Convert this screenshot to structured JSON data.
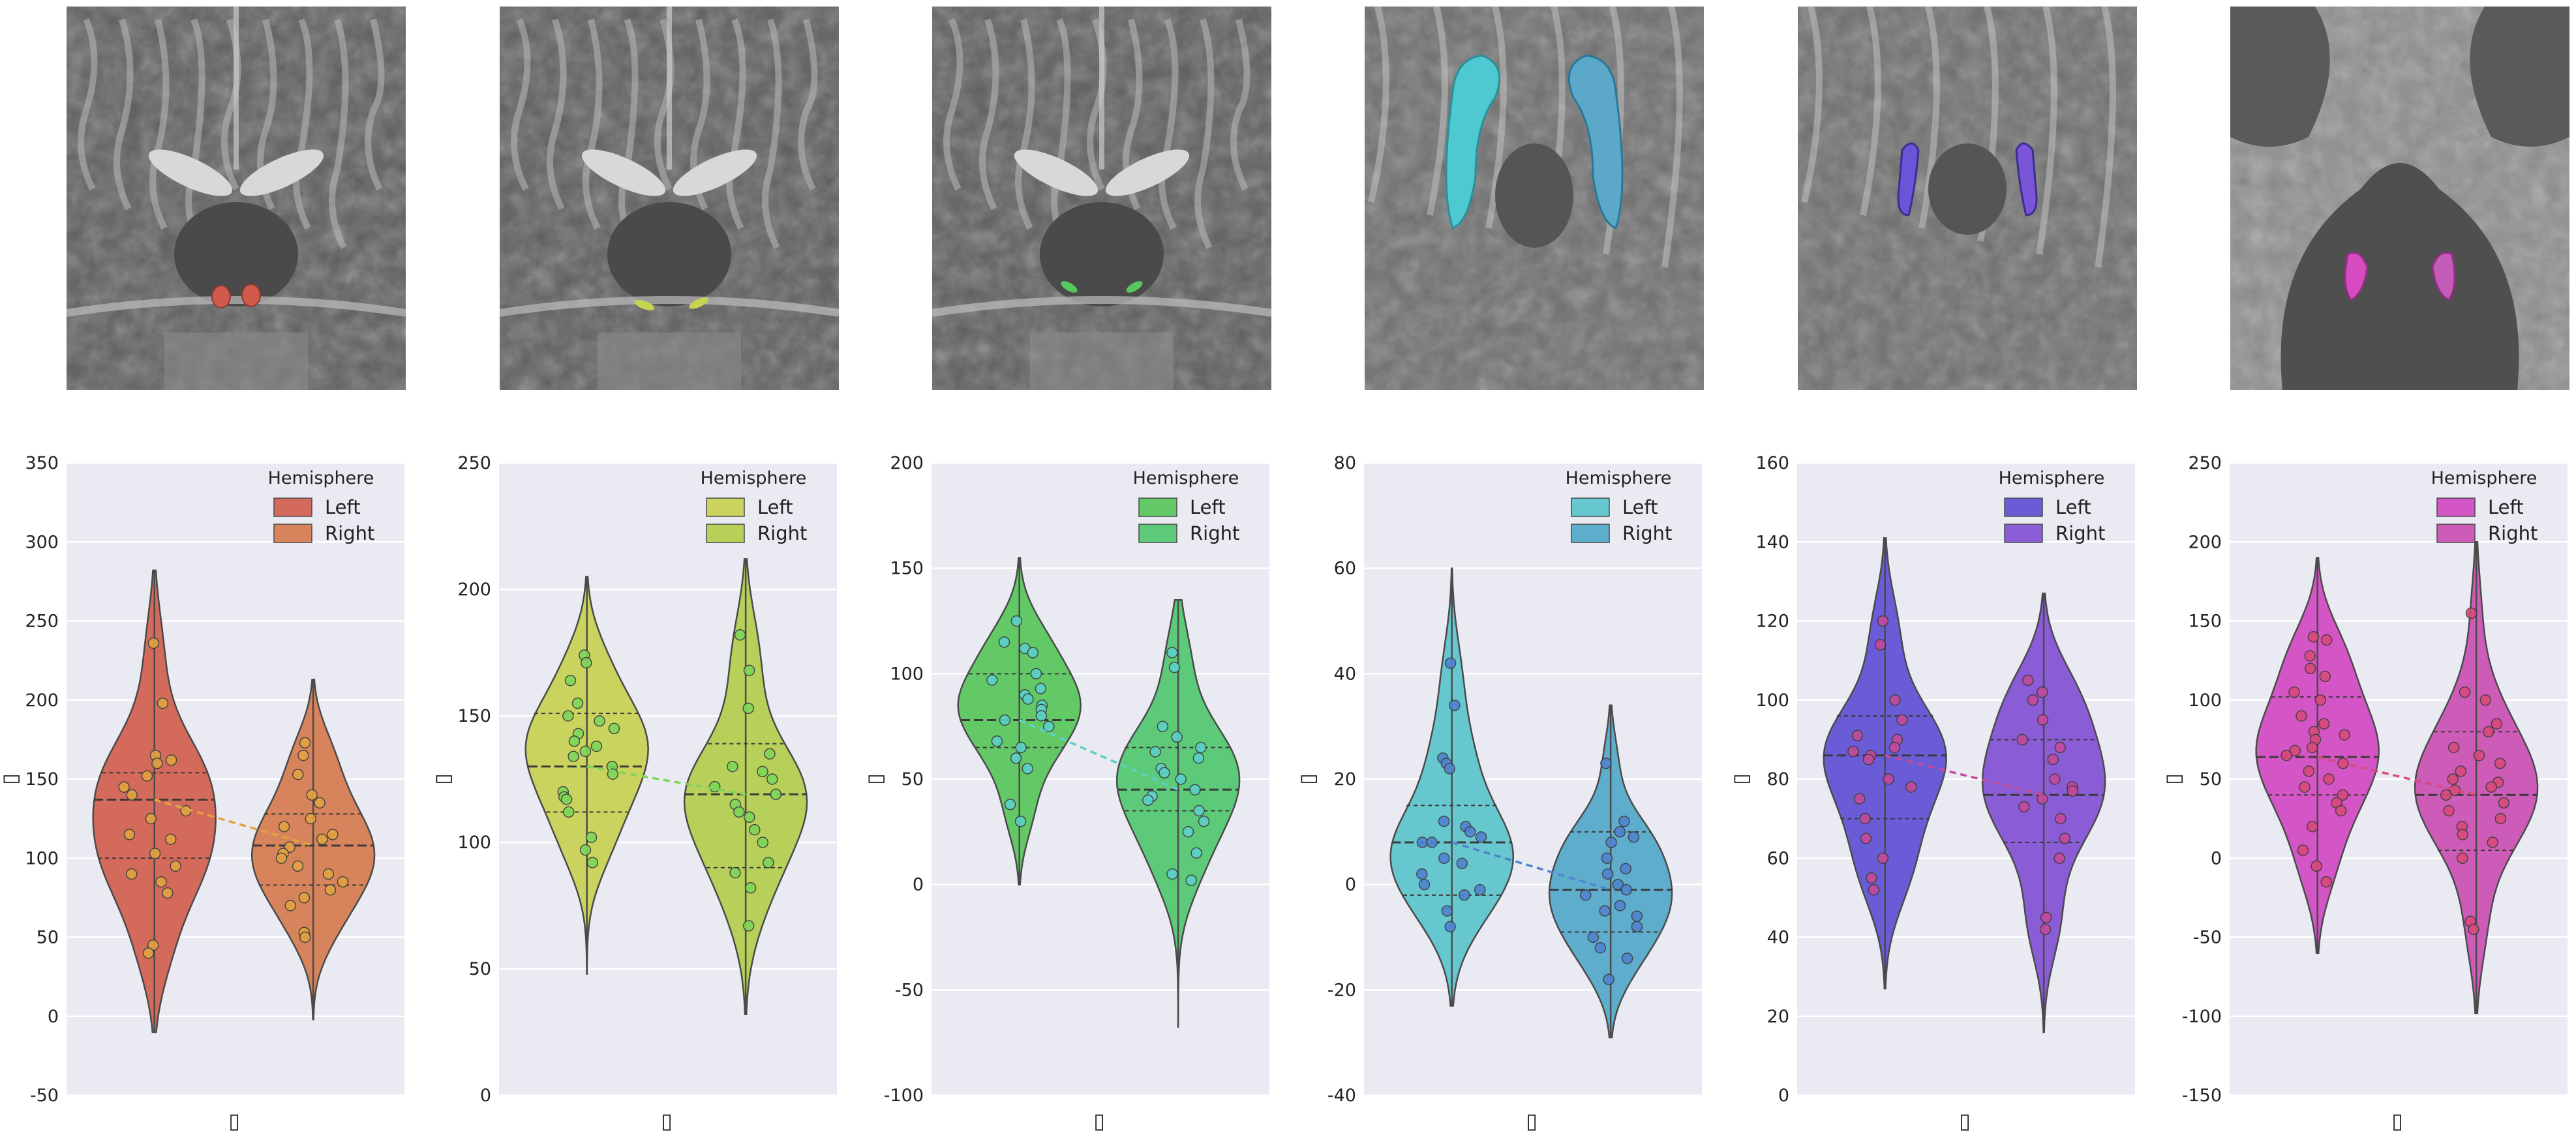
{
  "brain_images": [
    {
      "name": "brain-slice-1",
      "view": "coronal",
      "overlay_color": "#d05a4b"
    },
    {
      "name": "brain-slice-2",
      "view": "coronal",
      "overlay_color": "#c7d452"
    },
    {
      "name": "brain-slice-3",
      "view": "coronal",
      "overlay_color": "#57c85c"
    },
    {
      "name": "brain-slice-4",
      "view": "axial",
      "overlay_color": "#4ec9d2"
    },
    {
      "name": "brain-slice-5",
      "view": "axial",
      "overlay_color": "#6a55d8"
    },
    {
      "name": "brain-slice-6",
      "view": "axial",
      "overlay_color": "#d64bc0"
    }
  ],
  "chart_data": [
    {
      "type": "violin",
      "legend_title": "Hemisphere",
      "legend_position": "top-right",
      "grid": true,
      "categories": [
        "Left",
        "Right"
      ],
      "ylim": [
        -50,
        350
      ],
      "yticks": [
        -50,
        0,
        50,
        100,
        150,
        200,
        250,
        300,
        350
      ],
      "xlabel": "▯",
      "ylabel": "▯",
      "series": [
        {
          "name": "Left",
          "color": "#d46a5c",
          "dot_color": "#e0a340",
          "median": 137,
          "q1": 100,
          "q3": 154,
          "min": -10,
          "max": 282,
          "values": [
            236,
            198,
            165,
            162,
            160,
            152,
            145,
            140,
            130,
            125,
            115,
            112,
            103,
            95,
            90,
            85,
            78,
            45,
            40
          ]
        },
        {
          "name": "Right",
          "color": "#d7845c",
          "dot_color": "#e0a340",
          "median": 108,
          "q1": 83,
          "q3": 128,
          "min": -2,
          "max": 213,
          "values": [
            173,
            165,
            153,
            140,
            135,
            125,
            120,
            115,
            112,
            107,
            103,
            100,
            95,
            90,
            85,
            80,
            75,
            70,
            53,
            50
          ]
        }
      ]
    },
    {
      "type": "violin",
      "legend_title": "Hemisphere",
      "legend_position": "top-right",
      "grid": true,
      "categories": [
        "Left",
        "Right"
      ],
      "ylim": [
        0,
        250
      ],
      "yticks": [
        0,
        50,
        100,
        150,
        200,
        250
      ],
      "xlabel": "▯",
      "ylabel": "▯",
      "series": [
        {
          "name": "Left",
          "color": "#c9d35e",
          "dot_color": "#7ed65a",
          "median": 130,
          "q1": 112,
          "q3": 151,
          "min": 48,
          "max": 205,
          "values": [
            174,
            171,
            164,
            155,
            150,
            148,
            145,
            143,
            140,
            138,
            136,
            134,
            130,
            127,
            120,
            118,
            117,
            112,
            102,
            97,
            92
          ]
        },
        {
          "name": "Right",
          "color": "#b7d05a",
          "dot_color": "#7ed65a",
          "median": 119,
          "q1": 90,
          "q3": 139,
          "min": 32,
          "max": 212,
          "values": [
            182,
            168,
            153,
            135,
            130,
            128,
            125,
            122,
            119,
            115,
            112,
            110,
            105,
            100,
            92,
            88,
            82,
            67
          ]
        }
      ]
    },
    {
      "type": "violin",
      "legend_title": "Hemisphere",
      "legend_position": "top-right",
      "grid": true,
      "categories": [
        "Left",
        "Right"
      ],
      "ylim": [
        -100,
        200
      ],
      "yticks": [
        -100,
        -50,
        0,
        50,
        100,
        150,
        200
      ],
      "xlabel": "▯",
      "ylabel": "▯",
      "series": [
        {
          "name": "Left",
          "color": "#63c966",
          "dot_color": "#5cd0c9",
          "median": 78,
          "q1": 65,
          "q3": 100,
          "min": 0,
          "max": 155,
          "values": [
            125,
            115,
            112,
            110,
            100,
            97,
            93,
            90,
            88,
            85,
            83,
            80,
            78,
            75,
            68,
            65,
            60,
            55,
            38,
            30
          ]
        },
        {
          "name": "Right",
          "color": "#5cca78",
          "dot_color": "#5cd0c9",
          "median": 45,
          "q1": 35,
          "q3": 65,
          "min": -68,
          "max": 135,
          "values": [
            110,
            103,
            75,
            70,
            65,
            63,
            60,
            55,
            53,
            50,
            45,
            42,
            40,
            35,
            30,
            25,
            15,
            5,
            2
          ]
        }
      ]
    },
    {
      "type": "violin",
      "legend_title": "Hemisphere",
      "legend_position": "top-right",
      "grid": true,
      "categories": [
        "Left",
        "Right"
      ],
      "ylim": [
        -40,
        80
      ],
      "yticks": [
        -40,
        -20,
        0,
        20,
        40,
        60,
        80
      ],
      "xlabel": "▯",
      "ylabel": "▯",
      "series": [
        {
          "name": "Left",
          "color": "#66c7cf",
          "dot_color": "#4f83cf",
          "median": 8,
          "q1": -2,
          "q3": 15,
          "min": -23,
          "max": 60,
          "values": [
            42,
            34,
            24,
            23,
            22,
            12,
            11,
            10,
            9,
            8,
            8,
            5,
            4,
            2,
            0,
            -1,
            -2,
            -5,
            -8
          ]
        },
        {
          "name": "Right",
          "color": "#5fadcc",
          "dot_color": "#4f83cf",
          "median": -1,
          "q1": -9,
          "q3": 10,
          "min": -29,
          "max": 34,
          "values": [
            23,
            12,
            10,
            9,
            8,
            5,
            3,
            2,
            0,
            -1,
            -2,
            -4,
            -5,
            -6,
            -8,
            -10,
            -12,
            -14,
            -18
          ]
        }
      ]
    },
    {
      "type": "violin",
      "legend_title": "Hemisphere",
      "legend_position": "top-right",
      "grid": true,
      "categories": [
        "Left",
        "Right"
      ],
      "ylim": [
        0,
        160
      ],
      "yticks": [
        0,
        20,
        40,
        60,
        80,
        100,
        120,
        140,
        160
      ],
      "xlabel": "▯",
      "ylabel": "▯",
      "series": [
        {
          "name": "Left",
          "color": "#6a5cd6",
          "dot_color": "#c44a9a",
          "median": 86,
          "q1": 70,
          "q3": 96,
          "min": 27,
          "max": 141,
          "values": [
            120,
            114,
            100,
            95,
            91,
            90,
            88,
            87,
            86,
            85,
            80,
            78,
            75,
            70,
            65,
            60,
            55,
            52
          ]
        },
        {
          "name": "Right",
          "color": "#8a5cd6",
          "dot_color": "#c44a9a",
          "median": 76,
          "q1": 64,
          "q3": 90,
          "min": 16,
          "max": 127,
          "values": [
            105,
            102,
            100,
            95,
            90,
            88,
            85,
            80,
            78,
            77,
            75,
            73,
            70,
            65,
            60,
            45,
            42
          ]
        }
      ]
    },
    {
      "type": "violin",
      "legend_title": "Hemisphere",
      "legend_position": "top-right",
      "grid": true,
      "categories": [
        "Left",
        "Right"
      ],
      "ylim": [
        -150,
        250
      ],
      "yticks": [
        -150,
        -100,
        -50,
        0,
        50,
        100,
        150,
        200,
        250
      ],
      "xlabel": "▯",
      "ylabel": "▯",
      "series": [
        {
          "name": "Left",
          "color": "#d455c5",
          "dot_color": "#d94a7a",
          "median": 64,
          "q1": 40,
          "q3": 102,
          "min": -60,
          "max": 190,
          "values": [
            140,
            138,
            128,
            120,
            115,
            105,
            100,
            90,
            85,
            80,
            78,
            75,
            70,
            68,
            65,
            60,
            55,
            50,
            45,
            40,
            35,
            30,
            20,
            5,
            -5,
            -15
          ]
        },
        {
          "name": "Right",
          "color": "#cc5cb8",
          "dot_color": "#d94a7a",
          "median": 40,
          "q1": 5,
          "q3": 80,
          "min": -98,
          "max": 200,
          "values": [
            155,
            105,
            100,
            85,
            80,
            70,
            65,
            60,
            55,
            50,
            48,
            45,
            43,
            40,
            35,
            30,
            25,
            20,
            15,
            10,
            0,
            -40,
            -45
          ]
        }
      ]
    }
  ]
}
